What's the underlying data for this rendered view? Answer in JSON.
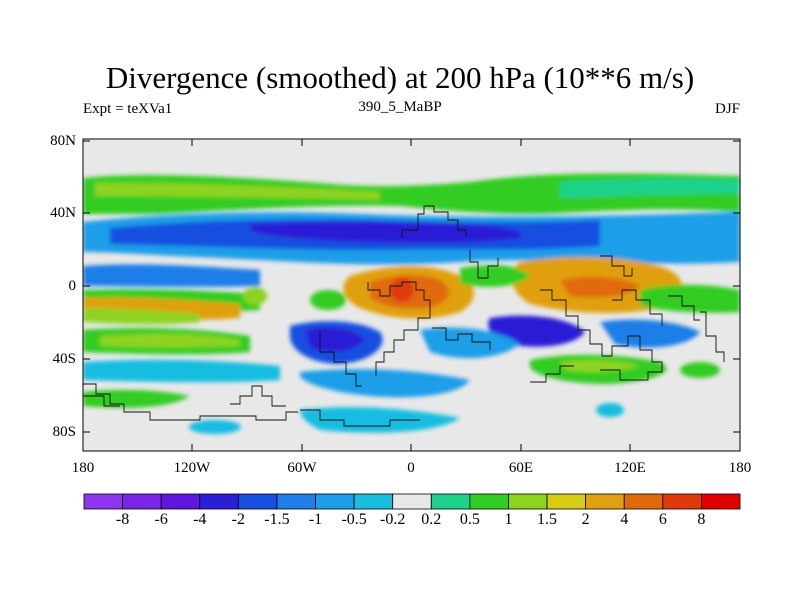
{
  "title": "Divergence (smoothed) at 200 hPa (10**6 m/s)",
  "left_subtitle": "Expt = teXVa1",
  "center_subtitle": "390_5_MaBP",
  "right_subtitle": "DJF",
  "lat_labels": [
    "80N",
    "40N",
    "0",
    "40S",
    "80S"
  ],
  "lon_labels": [
    "180",
    "120W",
    "60W",
    "0",
    "60E",
    "120E",
    "180"
  ],
  "colorbar": {
    "labels": [
      "-8",
      "-6",
      "-4",
      "-2",
      "-1.5",
      "-1",
      "-0.5",
      "-0.2",
      "0.2",
      "0.5",
      "1",
      "1.5",
      "2",
      "4",
      "6",
      "8"
    ],
    "colors": [
      "#8e35ef",
      "#7a25e8",
      "#5f17e0",
      "#2a1fd6",
      "#1550e0",
      "#1f7ee8",
      "#1e9ee8",
      "#18bde0",
      "#e8e8e8",
      "#1fd28c",
      "#33cc22",
      "#8ed320",
      "#d6cc14",
      "#e0a010",
      "#e06a0a",
      "#e03a0a",
      "#e00000"
    ]
  }
}
